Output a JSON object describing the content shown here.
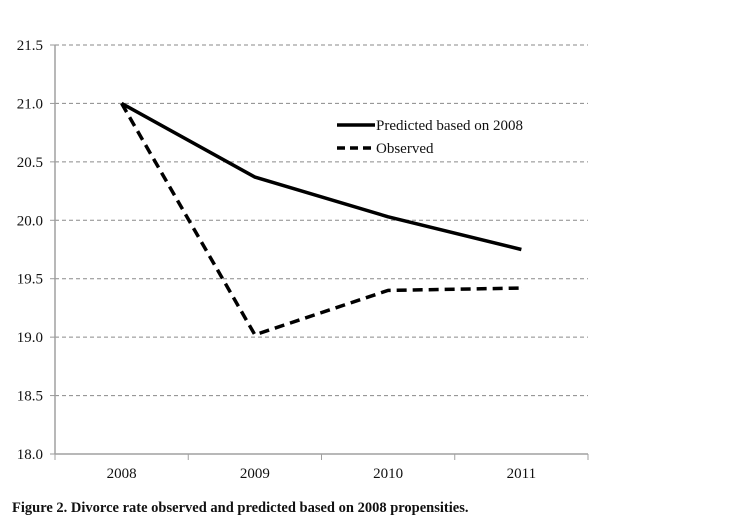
{
  "chart_data": {
    "type": "line",
    "title": "",
    "caption": "Figure 2. Divorce rate observed and predicted based on 2008 propensities.",
    "xlabel": "",
    "ylabel": "",
    "categories": [
      "2008",
      "2009",
      "2010",
      "2011"
    ],
    "ylim": [
      18.0,
      21.5
    ],
    "yticks": [
      18.0,
      18.5,
      19.0,
      19.5,
      20.0,
      20.5,
      21.0,
      21.5
    ],
    "ytick_labels": [
      "18.0",
      "18.5",
      "19.0",
      "19.5",
      "20.0",
      "20.5",
      "21.0",
      "21.5"
    ],
    "grid": "horizontal dashed",
    "legend_position": "top-right",
    "series": [
      {
        "name": "Predicted based on 2008",
        "style": "solid",
        "color": "#000000",
        "values": [
          21.0,
          20.37,
          20.03,
          19.75
        ]
      },
      {
        "name": "Observed",
        "style": "dashed",
        "color": "#000000",
        "values": [
          21.0,
          19.02,
          19.4,
          19.42
        ]
      }
    ]
  }
}
